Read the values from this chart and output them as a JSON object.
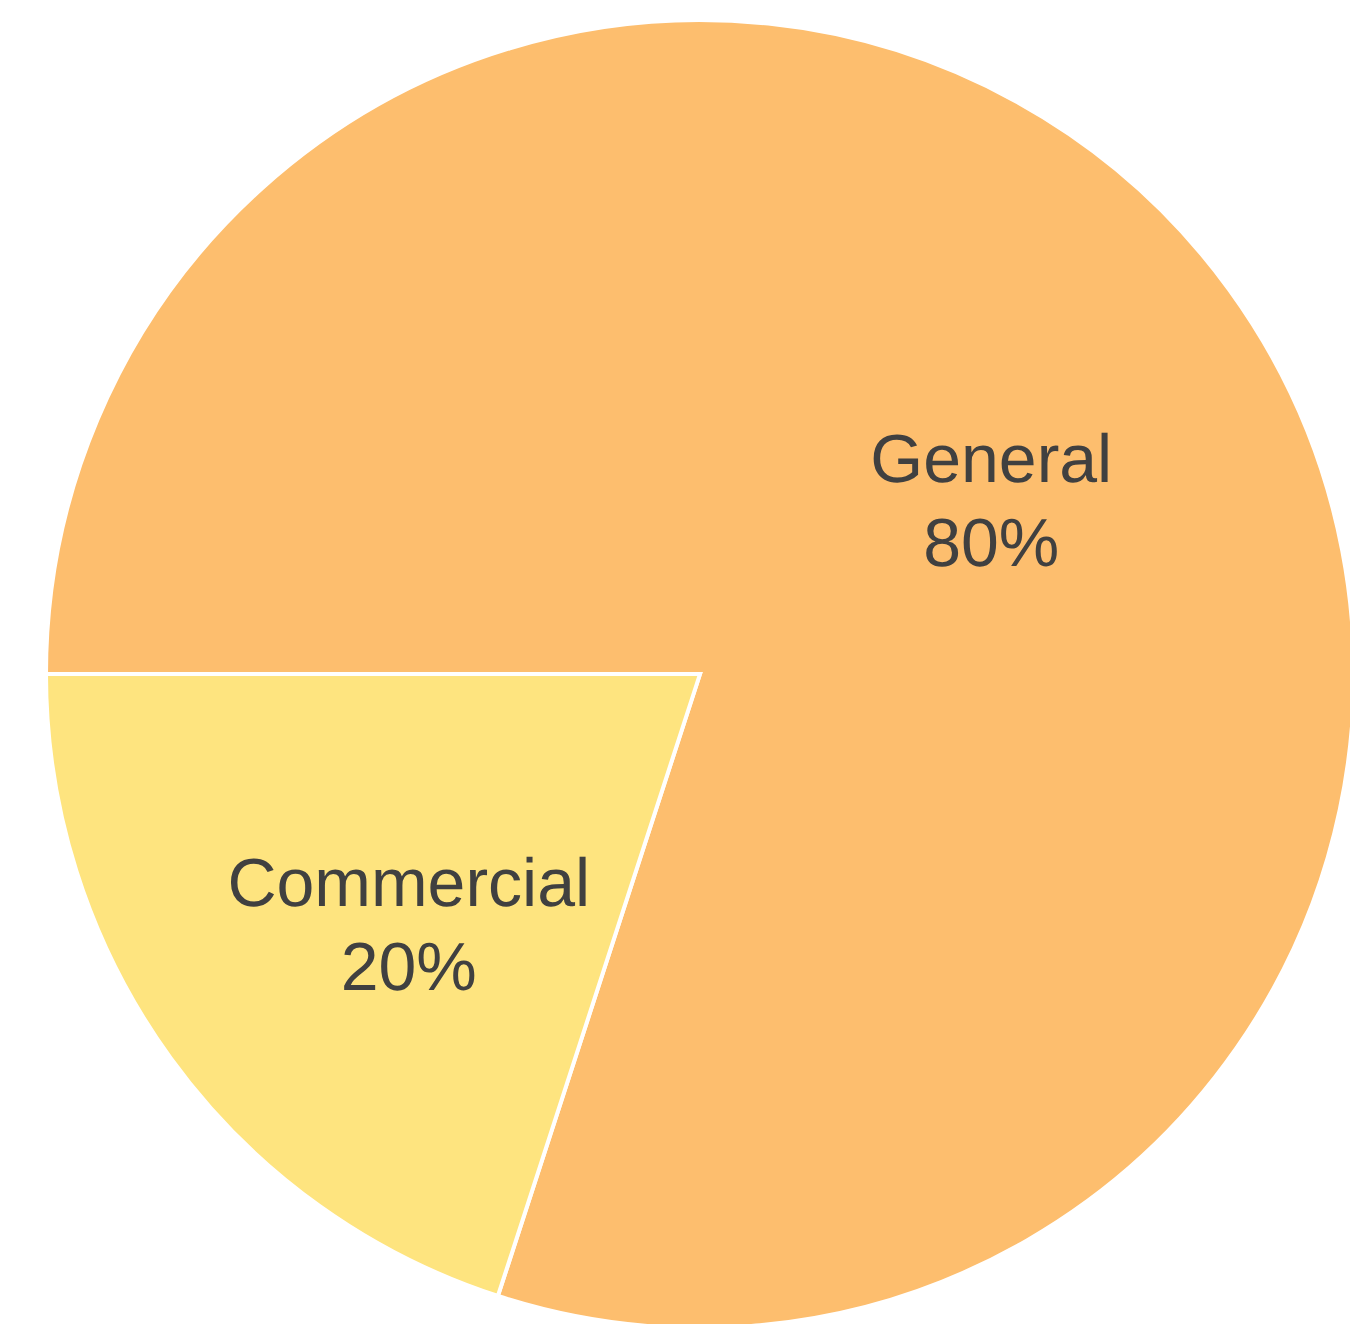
{
  "chart_data": {
    "type": "pie",
    "categories": [
      "General",
      "Commercial"
    ],
    "values": [
      80,
      20
    ],
    "colors": [
      "#fdbe6e",
      "#fee47f"
    ],
    "value_labels": [
      "80%",
      "20%"
    ]
  }
}
